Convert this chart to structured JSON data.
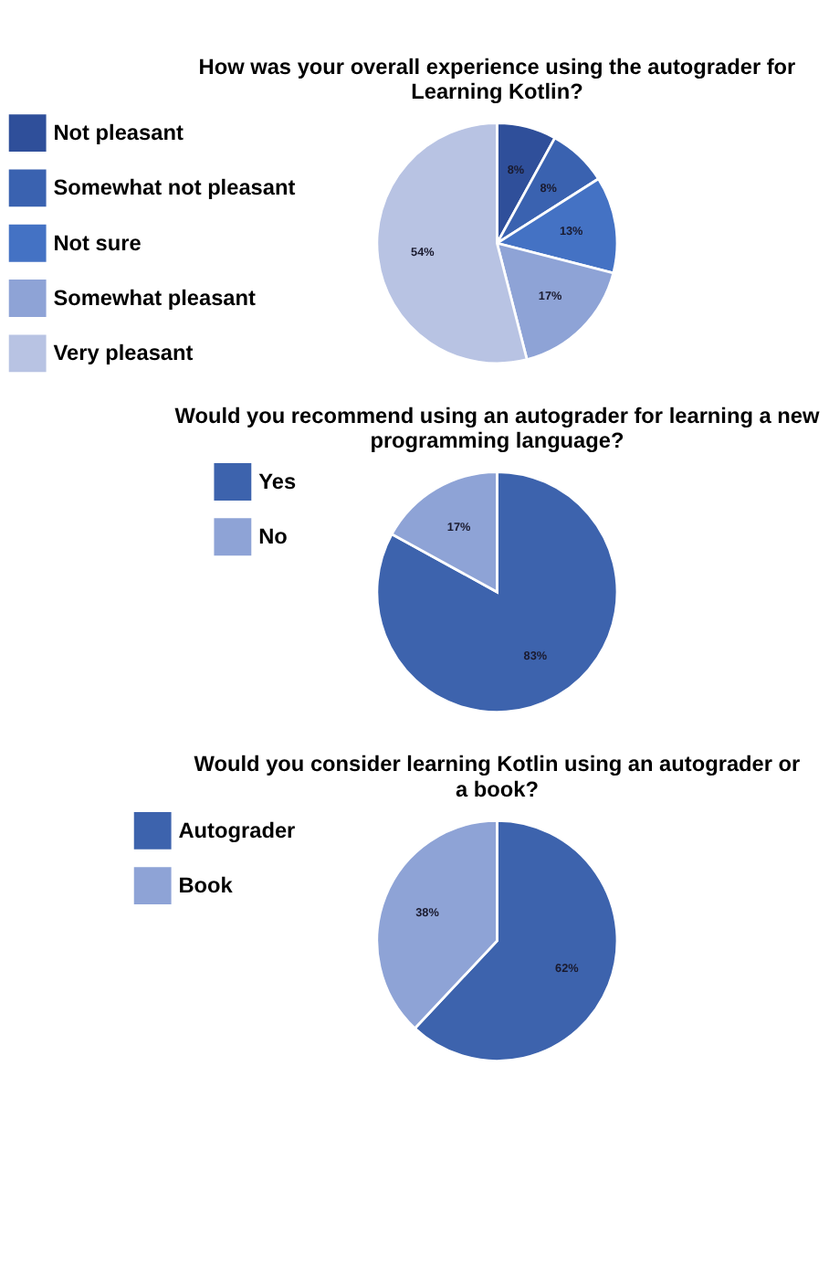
{
  "chart_data": [
    {
      "type": "pie",
      "title": "How was your overall experience using the autograder for Learning Kotlin?",
      "categories": [
        "Not pleasant",
        "Somewhat not pleasant",
        "Not sure",
        "Somewhat pleasant",
        "Very pleasant"
      ],
      "values": [
        8,
        8,
        13,
        17,
        54
      ],
      "value_labels": [
        "8%",
        "8%",
        "13%",
        "17%",
        "54%"
      ],
      "colors": [
        "#2f4f9a",
        "#3a62b0",
        "#4472c4",
        "#8ea3d6",
        "#b8c3e3"
      ],
      "legend": "left"
    },
    {
      "type": "pie",
      "title": "Would you recommend using an autograder for learning a new programming language?",
      "categories": [
        "Yes",
        "No"
      ],
      "values": [
        83,
        17
      ],
      "value_labels": [
        "83%",
        "17%"
      ],
      "colors": [
        "#3d63ad",
        "#8ea3d6"
      ],
      "legend": "left"
    },
    {
      "type": "pie",
      "title": "Would you consider learning Kotlin  using an autograder or a book?",
      "categories": [
        "Autograder",
        "Book"
      ],
      "values": [
        62,
        38
      ],
      "value_labels": [
        "62%",
        "38%"
      ],
      "colors": [
        "#3d63ad",
        "#8ea3d6"
      ],
      "legend": "left"
    }
  ]
}
